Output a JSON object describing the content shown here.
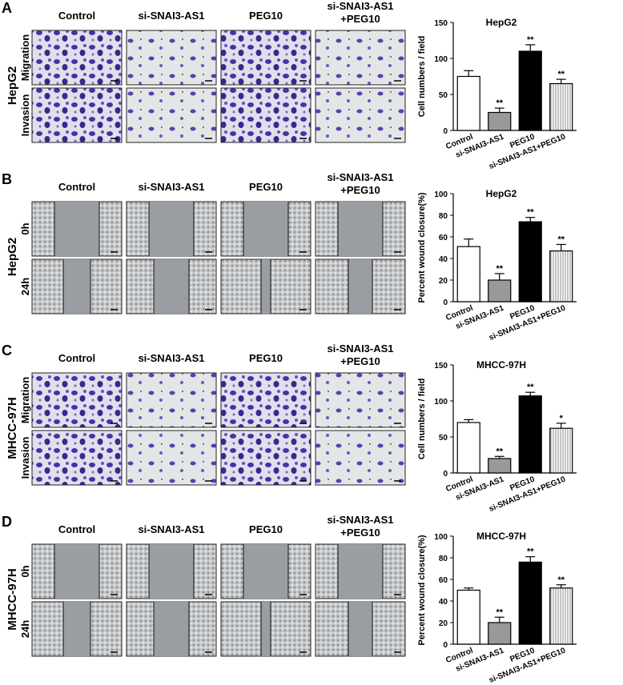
{
  "panels": [
    {
      "label": "A",
      "cell_line": "HepG2",
      "kind": "transwell",
      "columns": [
        [
          "Control"
        ],
        [
          "si-SNAI3-AS1"
        ],
        [
          "PEG10"
        ],
        [
          "si-SNAI3-AS1",
          "+PEG10"
        ]
      ],
      "rows": [
        "Migration",
        "Invasion"
      ]
    },
    {
      "label": "B",
      "cell_line": "HepG2",
      "kind": "wound",
      "columns": [
        [
          "Control"
        ],
        [
          "si-SNAI3-AS1"
        ],
        [
          "PEG10"
        ],
        [
          "si-SNAI3-AS1",
          "+PEG10"
        ]
      ],
      "rows": [
        "0h",
        "24h"
      ]
    },
    {
      "label": "C",
      "cell_line": "MHCC-97H",
      "kind": "transwell",
      "columns": [
        [
          "Control"
        ],
        [
          "si-SNAI3-AS1"
        ],
        [
          "PEG10"
        ],
        [
          "si-SNAI3-AS1",
          "+PEG10"
        ]
      ],
      "rows": [
        "Migration",
        "Invasion"
      ]
    },
    {
      "label": "D",
      "cell_line": "MHCC-97H",
      "kind": "wound",
      "columns": [
        [
          "Control"
        ],
        [
          "si-SNAI3-AS1"
        ],
        [
          "PEG10"
        ],
        [
          "si-SNAI3-AS1",
          "+PEG10"
        ]
      ],
      "rows": [
        "0h",
        "24h"
      ]
    }
  ],
  "chart_data": [
    {
      "type": "bar",
      "title": "HepG2",
      "ylabel": "Cell numbers / field",
      "categories": [
        "Control",
        "si-SNAI3-AS1",
        "PEG10",
        "si-SNAI3-AS1+PEG10"
      ],
      "values": [
        75,
        25,
        110,
        65
      ],
      "errors": [
        8,
        6,
        9,
        6
      ],
      "annotations": [
        null,
        "**",
        "**",
        "**"
      ],
      "colors": [
        "#ffffff",
        "#999999",
        "#000000",
        "#ffffff"
      ],
      "patterns": [
        null,
        null,
        null,
        "vertical-lines"
      ],
      "ylim": [
        0,
        150
      ],
      "yticks": [
        0,
        50,
        100,
        150
      ]
    },
    {
      "type": "bar",
      "title": "HepG2",
      "ylabel": "Percent wound closure(%)",
      "categories": [
        "Control",
        "si-SNAI3-AS1",
        "PEG10",
        "si-SNAI3-AS1+PEG10"
      ],
      "values": [
        51,
        20,
        74,
        47
      ],
      "errors": [
        7,
        6,
        4,
        6
      ],
      "annotations": [
        null,
        "**",
        "**",
        "**"
      ],
      "colors": [
        "#ffffff",
        "#999999",
        "#000000",
        "#ffffff"
      ],
      "patterns": [
        null,
        null,
        null,
        "vertical-lines"
      ],
      "ylim": [
        0,
        100
      ],
      "yticks": [
        0,
        20,
        40,
        60,
        80,
        100
      ]
    },
    {
      "type": "bar",
      "title": "MHCC-97H",
      "ylabel": "Cell numbers / field",
      "categories": [
        "Control",
        "si-SNAI3-AS1",
        "PEG10",
        "si-SNAI3-AS1+PEG10"
      ],
      "values": [
        70,
        20,
        107,
        62
      ],
      "errors": [
        4,
        3,
        5,
        7
      ],
      "annotations": [
        null,
        "**",
        "**",
        "*"
      ],
      "colors": [
        "#ffffff",
        "#999999",
        "#000000",
        "#ffffff"
      ],
      "patterns": [
        null,
        null,
        null,
        "vertical-lines"
      ],
      "ylim": [
        0,
        150
      ],
      "yticks": [
        0,
        50,
        100,
        150
      ]
    },
    {
      "type": "bar",
      "title": "MHCC-97H",
      "ylabel": "Percent wound closure(%)",
      "categories": [
        "Control",
        "si-SNAI3-AS1",
        "PEG10",
        "si-SNAI3-AS1+PEG10"
      ],
      "values": [
        50,
        20,
        76,
        52
      ],
      "errors": [
        2,
        5,
        5,
        3
      ],
      "annotations": [
        null,
        "**",
        "**",
        "**"
      ],
      "colors": [
        "#ffffff",
        "#999999",
        "#000000",
        "#ffffff"
      ],
      "patterns": [
        null,
        null,
        null,
        "vertical-lines"
      ],
      "ylim": [
        0,
        100
      ],
      "yticks": [
        0,
        20,
        40,
        60,
        80,
        100
      ]
    }
  ]
}
